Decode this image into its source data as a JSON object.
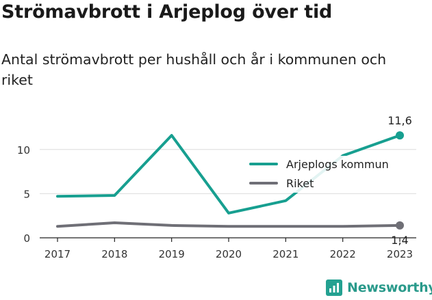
{
  "title": "Strömavbrott i Arjeplog över tid",
  "subtitle": "Antal strömavbrott per hushåll och år i kommunen och riket",
  "brand": "Newsworthy",
  "chart_data": {
    "type": "line",
    "x": [
      "2017",
      "2018",
      "2019",
      "2020",
      "2021",
      "2022",
      "2023"
    ],
    "yticks": [
      "0",
      "5",
      "10"
    ],
    "ylim": [
      0,
      13
    ],
    "grid": true,
    "legend_position": "right",
    "series": [
      {
        "name": "Arjeplogs kommun",
        "color": "#179f90",
        "values": [
          4.7,
          4.8,
          11.6,
          2.8,
          4.2,
          9.3,
          11.6
        ],
        "end_label": "11,6"
      },
      {
        "name": "Riket",
        "color": "#6f6f76",
        "values": [
          1.3,
          1.7,
          1.4,
          1.3,
          1.3,
          1.3,
          1.4
        ],
        "end_label": "1,4"
      }
    ]
  }
}
